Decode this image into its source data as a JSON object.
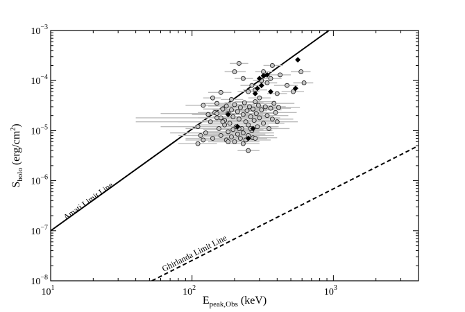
{
  "chart_data": {
    "type": "scatter",
    "xscale": "log",
    "yscale": "log",
    "xlim": [
      10,
      4000
    ],
    "ylim": [
      1e-08,
      0.001
    ],
    "xlabel": {
      "main": "E",
      "sub": "peak,Obs",
      "unit": " (keV)"
    },
    "ylabel": {
      "main": "S",
      "sub": "bolo",
      "unit": " (erg/cm",
      "sup": "2",
      "close": ")"
    },
    "x_ticks": [
      {
        "value": 10,
        "base": "10",
        "exp": "1"
      },
      {
        "value": 100,
        "base": "10",
        "exp": "2"
      },
      {
        "value": 1000,
        "base": "10",
        "exp": "3"
      }
    ],
    "y_ticks": [
      {
        "value": 1e-08,
        "base": "10",
        "exp": "−8"
      },
      {
        "value": 1e-07,
        "base": "10",
        "exp": "−7"
      },
      {
        "value": 1e-06,
        "base": "10",
        "exp": "−6"
      },
      {
        "value": 1e-05,
        "base": "10",
        "exp": "−5"
      },
      {
        "value": 0.0001,
        "base": "10",
        "exp": "−4"
      },
      {
        "value": 0.001,
        "base": "10",
        "exp": "−3"
      }
    ],
    "grid": false,
    "lines": [
      {
        "label": "Amati Limit Line",
        "style": "solid",
        "x": [
          10,
          930
        ],
        "y": [
          1e-07,
          0.001
        ]
      },
      {
        "label": "Ghirlanda Limit Line",
        "style": "dashed",
        "x": [
          52,
          4000
        ],
        "y": [
          1e-08,
          5e-06
        ]
      }
    ],
    "series": [
      {
        "marker": "open-circle",
        "error_bar_color": "#bbbbbb",
        "points": [
          [
            140,
            4.5e-05,
            120,
            160
          ],
          [
            160,
            5.8e-05,
            130,
            190
          ],
          [
            190,
            4.2e-05,
            160,
            230
          ],
          [
            200,
            0.00015,
            170,
            240
          ],
          [
            215,
            0.00022,
            185,
            250
          ],
          [
            230,
            0.00011,
            200,
            270
          ],
          [
            250,
            6e-05,
            210,
            300
          ],
          [
            265,
            8e-05,
            220,
            320
          ],
          [
            280,
            6.5e-05,
            230,
            340
          ],
          [
            300,
            4.5e-05,
            250,
            360
          ],
          [
            310,
            0.0001,
            270,
            360
          ],
          [
            320,
            0.00015,
            280,
            370
          ],
          [
            340,
            9e-05,
            290,
            400
          ],
          [
            360,
            0.00011,
            300,
            430
          ],
          [
            370,
            0.0002,
            320,
            440
          ],
          [
            400,
            5.5e-05,
            340,
            470
          ],
          [
            420,
            0.00013,
            350,
            500
          ],
          [
            470,
            8e-05,
            380,
            560
          ],
          [
            520,
            6e-05,
            430,
            620
          ],
          [
            590,
            0.00015,
            500,
            690
          ],
          [
            620,
            9e-05,
            520,
            720
          ],
          [
            120,
            3.2e-05,
            90,
            150
          ],
          [
            130,
            2.1e-05,
            100,
            170
          ],
          [
            145,
            2.3e-05,
            110,
            190
          ],
          [
            150,
            3.5e-05,
            120,
            190
          ],
          [
            160,
            1.8e-05,
            110,
            220
          ],
          [
            165,
            2.7e-05,
            120,
            220
          ],
          [
            170,
            1.6e-05,
            120,
            240
          ],
          [
            175,
            3.1e-05,
            130,
            240
          ],
          [
            180,
            2.2e-05,
            130,
            250
          ],
          [
            185,
            1.4e-05,
            130,
            260
          ],
          [
            190,
            2.6e-05,
            140,
            260
          ],
          [
            195,
            1.9e-05,
            140,
            270
          ],
          [
            200,
            3.3e-05,
            150,
            280
          ],
          [
            205,
            1.2e-05,
            150,
            280
          ],
          [
            210,
            2.4e-05,
            150,
            290
          ],
          [
            215,
            1.7e-05,
            150,
            300
          ],
          [
            220,
            2.9e-05,
            160,
            300
          ],
          [
            225,
            1.1e-05,
            160,
            310
          ],
          [
            230,
            2.1e-05,
            160,
            320
          ],
          [
            235,
            3.6e-05,
            170,
            320
          ],
          [
            240,
            1.5e-05,
            170,
            330
          ],
          [
            245,
            2.5e-05,
            170,
            340
          ],
          [
            250,
            1.3e-05,
            170,
            350
          ],
          [
            255,
            3e-05,
            180,
            350
          ],
          [
            260,
            1.9e-05,
            180,
            360
          ],
          [
            265,
            1e-05,
            180,
            370
          ],
          [
            270,
            2.7e-05,
            190,
            380
          ],
          [
            275,
            1.6e-05,
            190,
            380
          ],
          [
            280,
            3.8e-05,
            200,
            390
          ],
          [
            285,
            2.2e-05,
            200,
            400
          ],
          [
            290,
            1.2e-05,
            200,
            410
          ],
          [
            295,
            3.2e-05,
            210,
            410
          ],
          [
            300,
            1.8e-05,
            210,
            420
          ],
          [
            310,
            2.6e-05,
            220,
            430
          ],
          [
            320,
            1.4e-05,
            220,
            450
          ],
          [
            330,
            3e-05,
            230,
            460
          ],
          [
            340,
            2e-05,
            230,
            480
          ],
          [
            350,
            1.1e-05,
            240,
            490
          ],
          [
            360,
            2.8e-05,
            250,
            500
          ],
          [
            370,
            1.7e-05,
            260,
            520
          ],
          [
            380,
            3.5e-05,
            270,
            530
          ],
          [
            390,
            2.3e-05,
            270,
            550
          ],
          [
            400,
            1.5e-05,
            280,
            560
          ],
          [
            410,
            2.9e-05,
            290,
            580
          ],
          [
            110,
            1.2e-05,
            60,
            400
          ],
          [
            125,
            9e-06,
            70,
            380
          ],
          [
            135,
            1.5e-05,
            80,
            400
          ],
          [
            140,
            7e-06,
            90,
            280
          ],
          [
            155,
            1.1e-05,
            90,
            300
          ],
          [
            160,
            8e-06,
            100,
            300
          ],
          [
            170,
            1.3e-05,
            110,
            300
          ],
          [
            175,
            6.5e-06,
            110,
            280
          ],
          [
            180,
            9.5e-06,
            120,
            300
          ],
          [
            190,
            7.5e-06,
            120,
            300
          ],
          [
            195,
            1.05e-05,
            120,
            320
          ],
          [
            200,
            6e-06,
            130,
            300
          ],
          [
            210,
            8.5e-06,
            130,
            330
          ],
          [
            215,
            1.1e-05,
            130,
            350
          ],
          [
            220,
            7e-06,
            140,
            340
          ],
          [
            230,
            9e-06,
            140,
            350
          ],
          [
            240,
            6.5e-06,
            150,
            360
          ],
          [
            250,
            8e-06,
            150,
            380
          ],
          [
            260,
            1.1e-05,
            160,
            400
          ],
          [
            270,
            7.2e-06,
            170,
            400
          ],
          [
            110,
            5.5e-06,
            80,
            150
          ],
          [
            115,
            8e-06,
            80,
            160
          ],
          [
            120,
            6.5e-06,
            90,
            170
          ],
          [
            250,
            4e-06,
            210,
            300
          ],
          [
            280,
            7e-06,
            230,
            340
          ],
          [
            230,
            5.5e-06,
            180,
            300
          ],
          [
            180,
            6e-06,
            140,
            240
          ],
          [
            150,
            1.8e-05,
            40,
            250
          ],
          [
            165,
            1.5e-05,
            40,
            280
          ],
          [
            150,
            2.2e-05,
            60,
            260
          ]
        ]
      },
      {
        "marker": "filled-diamond",
        "points": [
          [
            180,
            2.1e-05
          ],
          [
            210,
            1.2e-05
          ],
          [
            250,
            7e-06
          ],
          [
            270,
            1.1e-05
          ],
          [
            280,
            5.5e-05
          ],
          [
            290,
            7e-05
          ],
          [
            300,
            0.00011
          ],
          [
            310,
            8e-05
          ],
          [
            320,
            0.000125
          ],
          [
            340,
            0.00013
          ],
          [
            360,
            6e-05
          ],
          [
            540,
            7e-05
          ],
          [
            560,
            0.00026
          ]
        ]
      }
    ]
  }
}
